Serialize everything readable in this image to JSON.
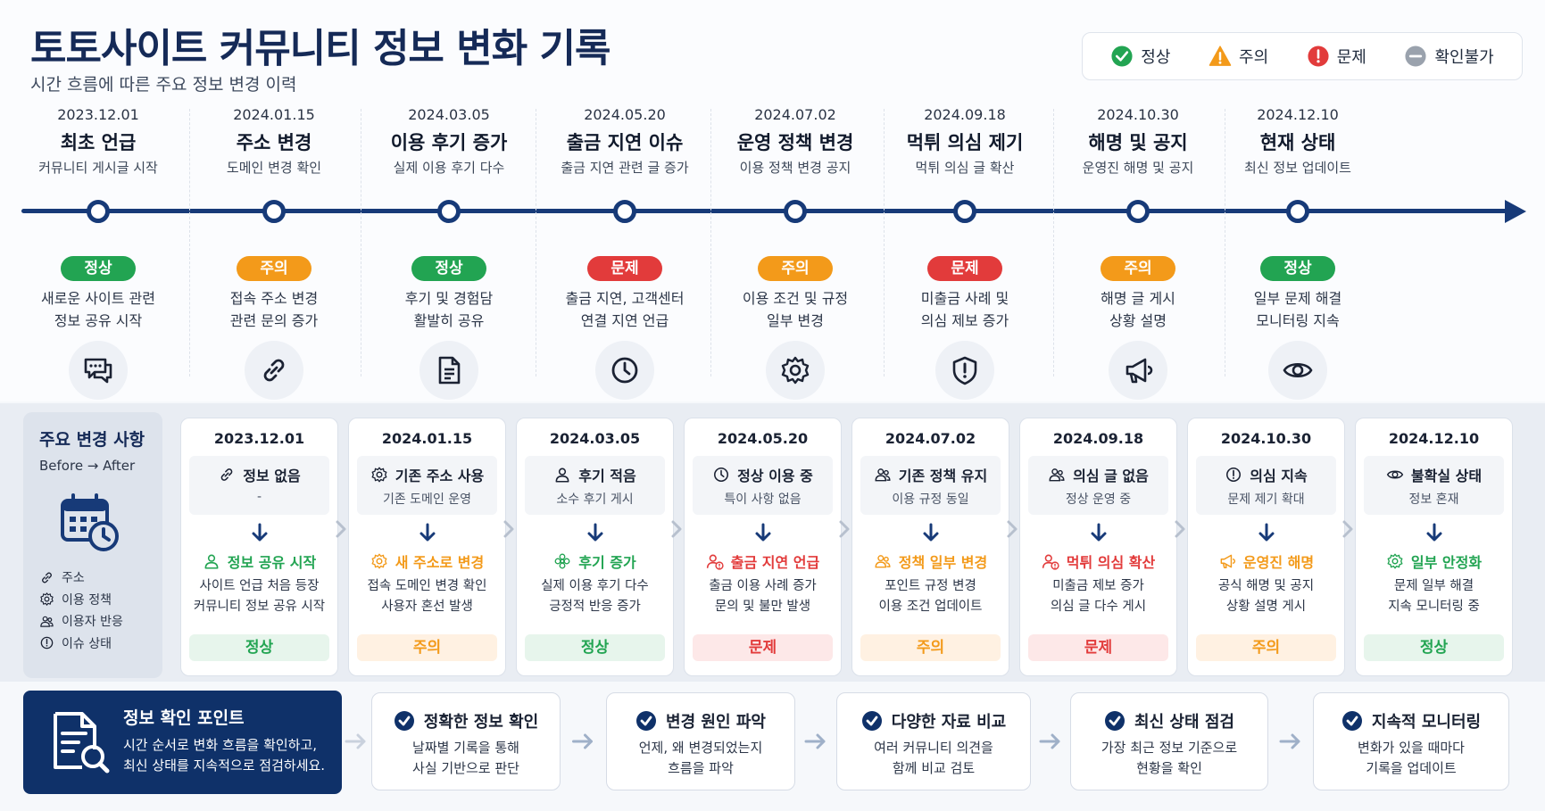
{
  "header": {
    "title": "토토사이트 커뮤니티 정보 변화 기록",
    "subtitle": "시간 흐름에 따른 주요 정보 변경 이력"
  },
  "legend": [
    {
      "label": "정상",
      "icon": "check-circle-icon",
      "color": "#22a452"
    },
    {
      "label": "주의",
      "icon": "warning-triangle-icon",
      "color": "#f39a1a"
    },
    {
      "label": "문제",
      "icon": "exclamation-circle-icon",
      "color": "#e23b3b"
    },
    {
      "label": "확인불가",
      "icon": "minus-circle-icon",
      "color": "#9aa2ad"
    }
  ],
  "colors": {
    "ok": "#22a452",
    "warn": "#f39a1a",
    "bad": "#e23b3b",
    "navy": "#173a78"
  },
  "timeline": [
    {
      "date": "2023.12.01",
      "title": "최초 언급",
      "sub": "커뮤니티 게시글 시작",
      "status": "정상",
      "level": "ok",
      "desc1": "새로운 사이트 관련",
      "desc2": "정보 공유 시작",
      "icon": "chat-icon"
    },
    {
      "date": "2024.01.15",
      "title": "주소 변경",
      "sub": "도메인 변경 확인",
      "status": "주의",
      "level": "warn",
      "desc1": "접속 주소 변경",
      "desc2": "관련 문의 증가",
      "icon": "link-icon"
    },
    {
      "date": "2024.03.05",
      "title": "이용 후기 증가",
      "sub": "실제 이용 후기 다수",
      "status": "정상",
      "level": "ok",
      "desc1": "후기 및 경험담",
      "desc2": "활발히 공유",
      "icon": "document-icon"
    },
    {
      "date": "2024.05.20",
      "title": "출금 지연 이슈",
      "sub": "출금 지연 관련 글 증가",
      "status": "문제",
      "level": "bad",
      "desc1": "출금 지연, 고객센터",
      "desc2": "연결 지연 언급",
      "icon": "clock-icon"
    },
    {
      "date": "2024.07.02",
      "title": "운영 정책 변경",
      "sub": "이용 정책 변경 공지",
      "status": "주의",
      "level": "warn",
      "desc1": "이용 조건 및 규정",
      "desc2": "일부 변경",
      "icon": "gear-icon"
    },
    {
      "date": "2024.09.18",
      "title": "먹튀 의심 제기",
      "sub": "먹튀 의심 글 확산",
      "status": "문제",
      "level": "bad",
      "desc1": "미출금 사례 및",
      "desc2": "의심 제보 증가",
      "icon": "shield-alert-icon"
    },
    {
      "date": "2024.10.30",
      "title": "해명 및 공지",
      "sub": "운영진 해명 및 공지",
      "status": "주의",
      "level": "warn",
      "desc1": "해명 글 게시",
      "desc2": "상황 설명",
      "icon": "megaphone-icon"
    },
    {
      "date": "2024.12.10",
      "title": "현재 상태",
      "sub": "최신 정보 업데이트",
      "status": "정상",
      "level": "ok",
      "desc1": "일부 문제 해결",
      "desc2": "모니터링 지속",
      "icon": "eye-icon"
    }
  ],
  "changes": {
    "title": "주요 변경 사항",
    "subtitle": "Before → After",
    "keys": [
      {
        "label": "주소",
        "icon": "link-icon"
      },
      {
        "label": "이용 정책",
        "icon": "gear-icon"
      },
      {
        "label": "이용자 반응",
        "icon": "users-icon"
      },
      {
        "label": "이슈 상태",
        "icon": "alert-circle-icon"
      }
    ],
    "cards": [
      {
        "date": "2023.12.01",
        "before_title": "정보 없음",
        "before_sub": "-",
        "before_icon": "link-icon",
        "after_title": "정보 공유 시작",
        "after_icon": "user-icon",
        "after_sub1": "사이트 언급 처음 등장",
        "after_sub2": "커뮤니티 정보 공유 시작",
        "status": "정상",
        "level": "ok"
      },
      {
        "date": "2024.01.15",
        "before_title": "기존 주소 사용",
        "before_sub": "기존 도메인 운영",
        "before_icon": "gear-icon",
        "after_title": "새 주소로 변경",
        "after_icon": "gear-icon",
        "after_sub1": "접속 도메인 변경 확인",
        "after_sub2": "사용자 혼선 발생",
        "status": "주의",
        "level": "warn"
      },
      {
        "date": "2024.03.05",
        "before_title": "후기 적음",
        "before_sub": "소수 후기 게시",
        "before_icon": "user-icon",
        "after_title": "후기 증가",
        "after_icon": "flower-icon",
        "after_sub1": "실제 이용 후기 다수",
        "after_sub2": "긍정적 반응 증가",
        "status": "정상",
        "level": "ok"
      },
      {
        "date": "2024.05.20",
        "before_title": "정상 이용 중",
        "before_sub": "특이 사항 없음",
        "before_icon": "clock-icon",
        "after_title": "출금 지연 언급",
        "after_icon": "user-alert-icon",
        "after_sub1": "출금 이용 사례 증가",
        "after_sub2": "문의 및 불만 발생",
        "status": "문제",
        "level": "bad"
      },
      {
        "date": "2024.07.02",
        "before_title": "기존 정책 유지",
        "before_sub": "이용 규정 동일",
        "before_icon": "users-icon",
        "after_title": "정책 일부 변경",
        "after_icon": "users-icon",
        "after_sub1": "포인트 규정 변경",
        "after_sub2": "이용 조건 업데이트",
        "status": "주의",
        "level": "warn"
      },
      {
        "date": "2024.09.18",
        "before_title": "의심 글 없음",
        "before_sub": "정상 운영 중",
        "before_icon": "users-icon",
        "after_title": "먹튀 의심 확산",
        "after_icon": "user-alert-icon",
        "after_sub1": "미출금 제보 증가",
        "after_sub2": "의심 글 다수 게시",
        "status": "문제",
        "level": "bad"
      },
      {
        "date": "2024.10.30",
        "before_title": "의심 지속",
        "before_sub": "문제 제기 확대",
        "before_icon": "alert-circle-icon",
        "after_title": "운영진 해명",
        "after_icon": "megaphone-icon",
        "after_sub1": "공식 해명 및 공지",
        "after_sub2": "상황 설명 게시",
        "status": "주의",
        "level": "warn"
      },
      {
        "date": "2024.12.10",
        "before_title": "불확실 상태",
        "before_sub": "정보 혼재",
        "before_icon": "eye-icon",
        "after_title": "일부 안정화",
        "after_icon": "gear-icon",
        "after_sub1": "문제 일부 해결",
        "after_sub2": "지속 모니터링 중",
        "status": "정상",
        "level": "ok"
      }
    ]
  },
  "points": {
    "title": "정보 확인 포인트",
    "desc1": "시간 순서로 변화 흐름을 확인하고,",
    "desc2": "최신 상태를 지속적으로 점검하세요.",
    "icon": "document-search-icon",
    "items": [
      {
        "title": "정확한 정보 확인",
        "desc1": "날짜별 기록을 통해",
        "desc2": "사실 기반으로 판단"
      },
      {
        "title": "변경 원인 파악",
        "desc1": "언제, 왜 변경되었는지",
        "desc2": "흐름을 파악"
      },
      {
        "title": "다양한 자료 비교",
        "desc1": "여러 커뮤니티 의견을",
        "desc2": "함께 비교 검토"
      },
      {
        "title": "최신 상태 점검",
        "desc1": "가장 최근 정보 기준으로",
        "desc2": "현황을 확인"
      },
      {
        "title": "지속적 모니터링",
        "desc1": "변화가 있을 때마다",
        "desc2": "기록을 업데이트"
      }
    ]
  }
}
